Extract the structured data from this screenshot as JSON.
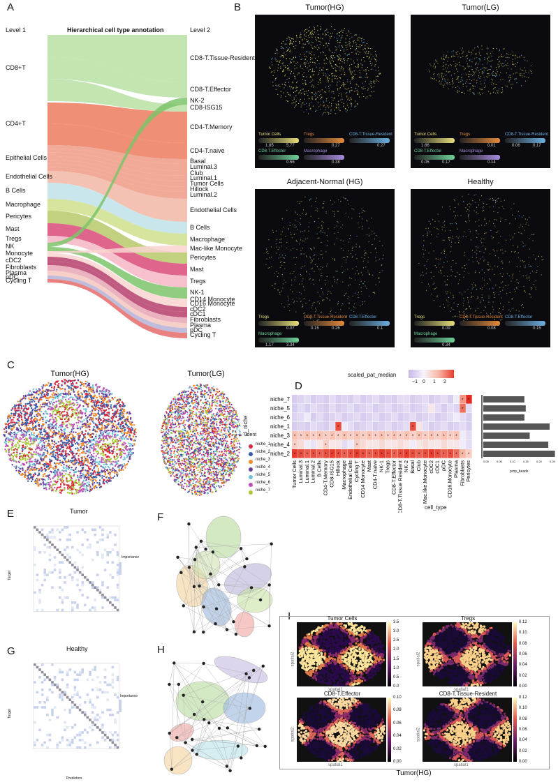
{
  "panels": {
    "A": "A",
    "B": "B",
    "C": "C",
    "D": "D",
    "E": "E",
    "F": "F",
    "G": "G",
    "H": "H",
    "I": "I"
  },
  "panelA": {
    "level1": "Level 1",
    "title": "Hierarchical cell type annotation",
    "level2": "Level 2",
    "left_labels": [
      "CD8+T",
      "CD4+T",
      "Epithelial Cells",
      "Endothelial Cells",
      "B Cells",
      "Macrophage",
      "Pericytes",
      "Mast",
      "Tregs",
      "NK",
      "Monocyte",
      "cDC2",
      "Fibroblasts",
      "Plasma",
      "pDC",
      "Cycling T"
    ],
    "right_labels": [
      "CD8-T.Tissue-Resident",
      "CD8-T.Effector",
      "NK-2",
      "CD8-ISG15",
      "CD4-T.Memory",
      "CD4-T.naive",
      "Basal",
      "Luminal.3",
      "Club",
      "Luminal.1",
      "Tumor Cells",
      "Hillock",
      "Luminal.2",
      "Endothelial Cells",
      "B Cells",
      "Macrophage",
      "Mac-like Monocyte",
      "Pericytes",
      "Mast",
      "Tregs",
      "NK-1",
      "CD14 Monocyte",
      "CD16 Monocyte",
      "cDC2",
      "cDC1",
      "Fibroblasts",
      "Plasma",
      "pDC",
      "Cycling T"
    ]
  },
  "panelB": {
    "titles": [
      "Tumor(HG)",
      "Tumor(LG)",
      "Adjacent-Normal (HG)",
      "Healthy"
    ],
    "legends": [
      [
        {
          "name": "Tumor Cells",
          "lo": "1.85",
          "hi": "5.77",
          "color": "#e8e07a"
        },
        {
          "name": "Tregs",
          "lo": "",
          "hi": "0.27",
          "color": "#e58a3a"
        },
        {
          "name": "CD8-T.Tissue-Resident",
          "lo": "",
          "hi": "0.27",
          "color": "#6bb0e0"
        },
        {
          "name": "CD8-T.Effector",
          "lo": "",
          "hi": "0.56",
          "color": "#6fd19a"
        },
        {
          "name": "Macrophage",
          "lo": "",
          "hi": "0.38",
          "color": "#a78ce0"
        }
      ],
      [
        {
          "name": "Tumor Cells",
          "lo": "1.66",
          "hi": "",
          "color": "#e8e07a"
        },
        {
          "name": "Tregs",
          "lo": "",
          "hi": "0.01",
          "color": "#e58a3a"
        },
        {
          "name": "CD8-T.Tissue-Resident",
          "lo": "0.06",
          "hi": "0.17",
          "color": "#6bb0e0"
        },
        {
          "name": "CD8-T.Effector",
          "lo": "0.05",
          "hi": "0.17",
          "color": "#6fd19a"
        },
        {
          "name": "Macrophage",
          "lo": "",
          "hi": "0.14",
          "color": "#a78ce0"
        }
      ],
      [
        {
          "name": "Tregs",
          "lo": "",
          "hi": "0.07",
          "color": "#e8e07a"
        },
        {
          "name": "CD8-T.Tissue-Resident",
          "lo": "0.15",
          "hi": "0.26",
          "color": "#e58a3a"
        },
        {
          "name": "CD8-T.Effector",
          "lo": "",
          "hi": "0.1",
          "color": "#6bb0e0"
        },
        {
          "name": "Macrophage",
          "lo": "1.17",
          "hi": "3.34",
          "color": "#6fd19a"
        }
      ],
      [
        {
          "name": "Tregs",
          "lo": "",
          "hi": "0.09",
          "color": "#e8e07a"
        },
        {
          "name": "CD8-T.Tissue-Resident",
          "lo": "",
          "hi": "0.08",
          "color": "#e58a3a"
        },
        {
          "name": "CD8-T.Effector",
          "lo": "",
          "hi": "0.15",
          "color": "#6bb0e0"
        },
        {
          "name": "Macrophage",
          "lo": "",
          "hi": "0.34",
          "color": "#6fd19a"
        }
      ]
    ]
  },
  "panelC": {
    "titles": [
      "Tumor(HG)",
      "Tumor(LG)"
    ],
    "legend_title": "ident",
    "idents": [
      {
        "name": "niche_1",
        "color": "#d7263d"
      },
      {
        "name": "niche_2",
        "color": "#3b5ba9"
      },
      {
        "name": "niche_3",
        "color": "#f08a2c"
      },
      {
        "name": "niche_4",
        "color": "#6a3d9a"
      },
      {
        "name": "niche_5",
        "color": "#6cc3d5"
      },
      {
        "name": "niche_6",
        "color": "#c04fb6"
      },
      {
        "name": "niche_7",
        "color": "#a8c93a"
      }
    ]
  },
  "panelD": {
    "legend_title": "scaled_pat_median",
    "legend_ticks": [
      "−1",
      "0",
      "1",
      "2"
    ],
    "ylabel": "cl_niche",
    "xlabel": "cell_type",
    "barlabel": "prop_beads",
    "rows": [
      "niche_7",
      "niche_5",
      "niche_6",
      "niche_1",
      "niche_3",
      "niche_4",
      "niche_2"
    ],
    "cols": [
      "Tumor Cells",
      "Luminal.3",
      "Luminal.1",
      "Luminal.2",
      "B Cells",
      "CD4-T.Memory",
      "CD8-ISG15",
      "Hillock",
      "Macrophage",
      "Endothelial Cells",
      "Cycling T",
      "CD14 Monocyte",
      "Mast",
      "CD4-T.naive",
      "NK-1",
      "Tregs",
      "CD8-T.Effector",
      "CD8-T.Tissue Resident",
      "NK-2",
      "Basal",
      "Club",
      "Mac.like.Monocyte",
      "cDC2",
      "cDC1",
      "pDC",
      "CD16.Monocyte",
      "Plasma",
      "Fibroblasts",
      "Pericytes"
    ],
    "bar_ticks": [
      "0.00",
      "0.05",
      "0.10",
      "0.15",
      "0.20",
      "0.25"
    ]
  },
  "panelE": {
    "title": "Tumor",
    "ylabel": "Target",
    "legend": "Importance"
  },
  "panelG": {
    "title": "Healthy",
    "ylabel": "Target",
    "xlabel": "Predictors",
    "legend": "Importance"
  },
  "panelI": {
    "titles": [
      "Tumor Cells",
      "Tregs",
      "CD8-T.Effector",
      "CD8-T.Tissue-Resident"
    ],
    "xlabel": "spatial1",
    "ylabel": "spatial2",
    "caption": "Tumor(HG)",
    "scales": [
      [
        "3.5",
        "3.0",
        "2.5",
        "2.0",
        "1.5",
        "1.0",
        "0.5",
        "0.0"
      ],
      [
        "0.12",
        "0.10",
        "0.08",
        "0.06",
        "0.04",
        "0.02",
        "0.00"
      ],
      [
        "0.10",
        "0.08",
        "0.06",
        "0.04",
        "0.02",
        "0.00"
      ],
      [
        "0.12",
        "0.10",
        "0.08",
        "0.06",
        "0.04",
        "0.02",
        "0.00"
      ]
    ]
  }
}
